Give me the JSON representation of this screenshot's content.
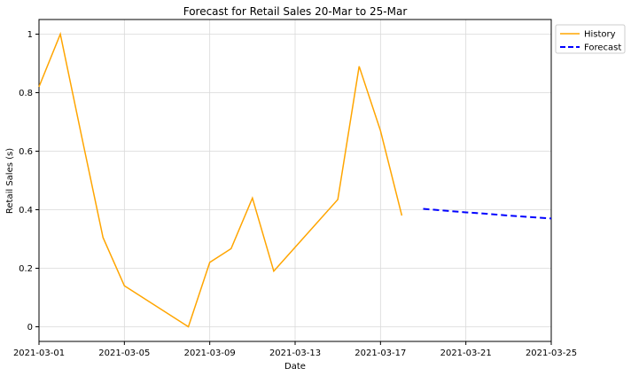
{
  "chart_data": {
    "type": "line",
    "title": "Forecast for Retail Sales 20-Mar to 25-Mar",
    "xlabel": "Date",
    "ylabel": "Retail Sales (s)",
    "xlim": [
      "2021-03-01",
      "2021-03-25"
    ],
    "ylim": [
      -0.05,
      1.05
    ],
    "x_ticks": [
      "2021-03-01",
      "2021-03-05",
      "2021-03-09",
      "2021-03-13",
      "2021-03-17",
      "2021-03-21",
      "2021-03-25"
    ],
    "y_ticks": [
      0,
      0.2,
      0.4,
      0.6,
      0.8,
      1
    ],
    "y_tick_labels": [
      "0",
      "0.2",
      "0.4",
      "0.6",
      "0.8",
      "1"
    ],
    "grid": true,
    "legend_position": "outside top-right",
    "series": [
      {
        "name": "History",
        "style": "solid",
        "color": "#FFA500",
        "points": [
          {
            "x": "2021-03-01",
            "y": 0.82
          },
          {
            "x": "2021-03-02",
            "y": 1.0
          },
          {
            "x": "2021-03-03",
            "y": 0.65
          },
          {
            "x": "2021-03-04",
            "y": 0.305
          },
          {
            "x": "2021-03-05",
            "y": 0.14
          },
          {
            "x": "2021-03-08",
            "y": 0.0
          },
          {
            "x": "2021-03-09",
            "y": 0.22
          },
          {
            "x": "2021-03-10",
            "y": 0.267
          },
          {
            "x": "2021-03-11",
            "y": 0.44
          },
          {
            "x": "2021-03-12",
            "y": 0.19
          },
          {
            "x": "2021-03-15",
            "y": 0.435
          },
          {
            "x": "2021-03-16",
            "y": 0.89
          },
          {
            "x": "2021-03-17",
            "y": 0.67
          },
          {
            "x": "2021-03-18",
            "y": 0.38
          }
        ]
      },
      {
        "name": "Forecast",
        "style": "dashed",
        "color": "#0000FF",
        "points": [
          {
            "x": "2021-03-19",
            "y": 0.403
          },
          {
            "x": "2021-03-20",
            "y": 0.397
          },
          {
            "x": "2021-03-21",
            "y": 0.391
          },
          {
            "x": "2021-03-22",
            "y": 0.386
          },
          {
            "x": "2021-03-23",
            "y": 0.38
          },
          {
            "x": "2021-03-24",
            "y": 0.375
          },
          {
            "x": "2021-03-25",
            "y": 0.37
          }
        ]
      }
    ]
  }
}
